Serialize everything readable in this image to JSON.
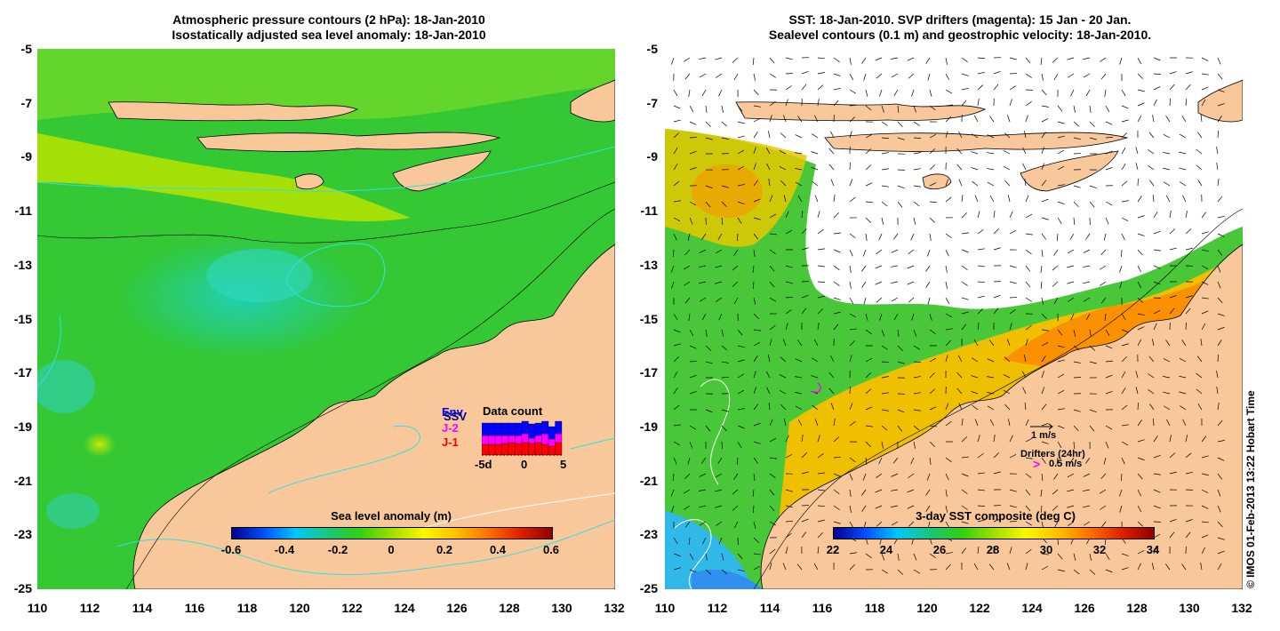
{
  "left_panel": {
    "title_line1": "Atmospheric pressure contours (2 hPa): 18-Jan-2010",
    "title_line2": "Isostatically adjusted sea level anomaly: 18-Jan-2010",
    "colorbar_title": "Sea level anomaly (m)",
    "colorbar_ticks": [
      "-0.6",
      "-0.4",
      "-0.2",
      "0",
      "0.2",
      "0.4",
      "0.6"
    ],
    "colorbar_colors": [
      "#00008c",
      "#0050ff",
      "#00c8ff",
      "#18c878",
      "#30d010",
      "#a0e000",
      "#f8f800",
      "#ffc000",
      "#ff7000",
      "#e02000",
      "#8c0000"
    ],
    "data_count": {
      "title": "Data count",
      "missions": [
        "Env",
        "SSV",
        "J-2",
        "J-1"
      ],
      "mission_colors": [
        "#0000ff",
        "#000080",
        "#ff00ff",
        "#ff0000"
      ],
      "axis_ticks": [
        "-5d",
        "0",
        "5"
      ]
    }
  },
  "right_panel": {
    "title_line1": "SST: 18-Jan-2010. SVP drifters (magenta): 15 Jan - 20 Jan.",
    "title_line2": "Sealevel contours (0.1 m) and geostrophic velocity: 18-Jan-2010.",
    "colorbar_title": "3-day SST composite (deg C)",
    "colorbar_ticks": [
      "22",
      "24",
      "26",
      "28",
      "30",
      "32",
      "34"
    ],
    "colorbar_colors": [
      "#00008c",
      "#0050ff",
      "#00c8ff",
      "#18c878",
      "#30d010",
      "#a0e000",
      "#f8f800",
      "#ffc000",
      "#ff7000",
      "#e02000",
      "#8c0000"
    ],
    "velocity_legend": "1 m/s",
    "drifter_legend_title": "Drifters (24hr)",
    "drifter_legend": "0.5 m/s"
  },
  "axes": {
    "lat_ticks": [
      "-5",
      "-7",
      "-9",
      "-11",
      "-13",
      "-15",
      "-17",
      "-19",
      "-21",
      "-23",
      "-25"
    ],
    "lon_ticks": [
      "110",
      "112",
      "114",
      "116",
      "118",
      "120",
      "122",
      "124",
      "126",
      "128",
      "130",
      "132"
    ]
  },
  "credit": "© IMOS 01-Feb-2013 13:22 Hobart Time",
  "colors": {
    "land": "#f8c89a",
    "ocean_green": "#28c828",
    "cloud_mask": "#ffffff"
  }
}
